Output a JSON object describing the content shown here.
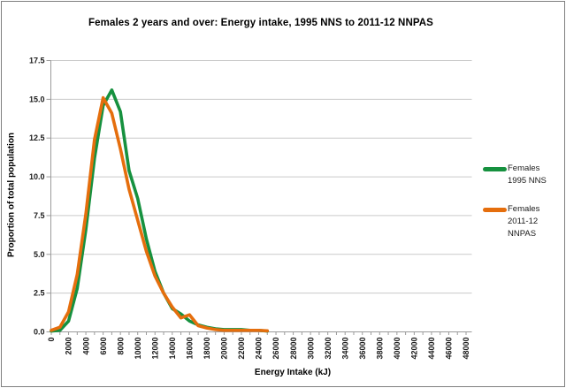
{
  "chart_data": {
    "type": "line",
    "title": "Females 2 years and over: Energy intake, 1995 NNS to 2011-12 NNPAS",
    "xlabel": "Energy Intake (kJ)",
    "ylabel": "Proportion of total population",
    "xlim": [
      0,
      48000
    ],
    "ylim": [
      0,
      17.5
    ],
    "x_tick_step": 2000,
    "x_minor_tick_step": 1000,
    "y_tick_step": 2.5,
    "grid": "horizontal-only",
    "legend_position": "right",
    "x_tick_labels": [
      "0",
      "2000",
      "4000",
      "6000",
      "8000",
      "10000",
      "12000",
      "14000",
      "16000",
      "18000",
      "20000",
      "22000",
      "24000",
      "26000",
      "28000",
      "30000",
      "32000",
      "34000",
      "36000",
      "38000",
      "40000",
      "42000",
      "44000",
      "46000",
      "48000"
    ],
    "y_tick_labels": [
      "0.0",
      "2.5",
      "5.0",
      "7.5",
      "10.0",
      "12.5",
      "15.0",
      "17.5"
    ],
    "x": [
      0,
      1000,
      2000,
      3000,
      4000,
      5000,
      6000,
      7000,
      8000,
      9000,
      10000,
      11000,
      12000,
      13000,
      14000,
      15000,
      16000,
      17000,
      18000,
      19000,
      20000,
      21000,
      22000,
      23000,
      24000,
      25000
    ],
    "series": [
      {
        "name": "Females 1995 NNS",
        "legend_label": "Females\n1995 NNS",
        "color": "#16913F",
        "values": [
          0.05,
          0.1,
          0.7,
          2.8,
          6.6,
          11.2,
          14.6,
          15.6,
          14.2,
          10.4,
          8.6,
          6.0,
          3.9,
          2.5,
          1.5,
          1.15,
          0.7,
          0.45,
          0.3,
          0.2,
          0.15,
          0.15,
          0.15,
          0.1,
          0.1,
          0.05
        ]
      },
      {
        "name": "Females 2011-12 NNPAS",
        "legend_label": "Females\n2011-12\nNNPAS",
        "color": "#E56E0D",
        "values": [
          0.1,
          0.3,
          1.3,
          3.7,
          7.6,
          12.4,
          15.1,
          14.1,
          11.8,
          9.2,
          7.2,
          5.2,
          3.6,
          2.5,
          1.6,
          0.9,
          1.1,
          0.4,
          0.25,
          0.15,
          0.1,
          0.1,
          0.1,
          0.1,
          0.1,
          0.07
        ]
      }
    ]
  },
  "colors": {
    "gridline": "#C9C9C9",
    "axis": "#9B9B9B",
    "tick_text": "#1A1A1A",
    "border": "#7F7F7F",
    "background": "#FFFFFF"
  }
}
